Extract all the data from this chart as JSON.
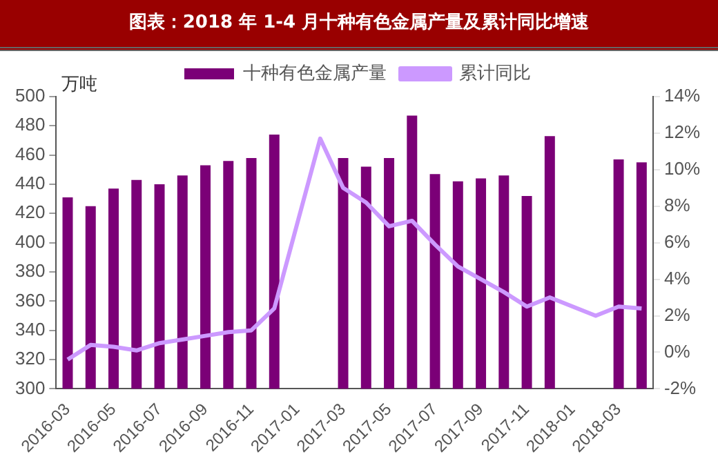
{
  "chart_data": {
    "type": "bar",
    "title": "图表：2018 年 1-4 月十种有色金属产量及累计同比增速",
    "ylabel": "万吨",
    "categories": [
      "2016-03",
      null,
      "2016-05",
      null,
      "2016-07",
      null,
      "2016-09",
      null,
      "2016-11",
      null,
      "2017-01",
      null,
      "2017-03",
      null,
      "2017-05",
      null,
      "2017-07",
      null,
      "2017-09",
      null,
      "2017-11",
      null,
      "2018-01",
      null,
      "2018-03",
      null
    ],
    "series": [
      {
        "name": "十种有色金属产量",
        "color": "#7b0077",
        "values": [
          431,
          425,
          437,
          443,
          440,
          446,
          453,
          456,
          458,
          474,
          null,
          null,
          458,
          452,
          458,
          487,
          447,
          442,
          444,
          446,
          432,
          473,
          null,
          null,
          457,
          455
        ]
      },
      {
        "name": "累计同比",
        "type": "line",
        "axis": "y2",
        "color": "#cc99ff",
        "values": [
          -0.4,
          0.4,
          0.3,
          0.1,
          0.5,
          0.7,
          0.9,
          1.1,
          1.2,
          2.4,
          null,
          11.7,
          9.0,
          8.2,
          6.9,
          7.2,
          5.9,
          4.7,
          4.0,
          3.3,
          2.5,
          3.0,
          null,
          2.0,
          2.5,
          2.4
        ]
      }
    ],
    "ylim": [
      300,
      500
    ],
    "yticks": [
      300,
      320,
      340,
      360,
      380,
      400,
      420,
      440,
      460,
      480,
      500
    ],
    "y2lim": [
      -2,
      14
    ],
    "y2ticks": [
      {
        "value": -2,
        "label": "-2%"
      },
      {
        "value": 0,
        "label": "0%"
      },
      {
        "value": 2,
        "label": "2%"
      },
      {
        "value": 4,
        "label": "4%"
      },
      {
        "value": 6,
        "label": "6%"
      },
      {
        "value": 8,
        "label": "8%"
      },
      {
        "value": 10,
        "label": "10%"
      },
      {
        "value": 12,
        "label": "12%"
      },
      {
        "value": 14,
        "label": "14%"
      }
    ],
    "grid": false,
    "legend": "top",
    "marker": "none"
  }
}
